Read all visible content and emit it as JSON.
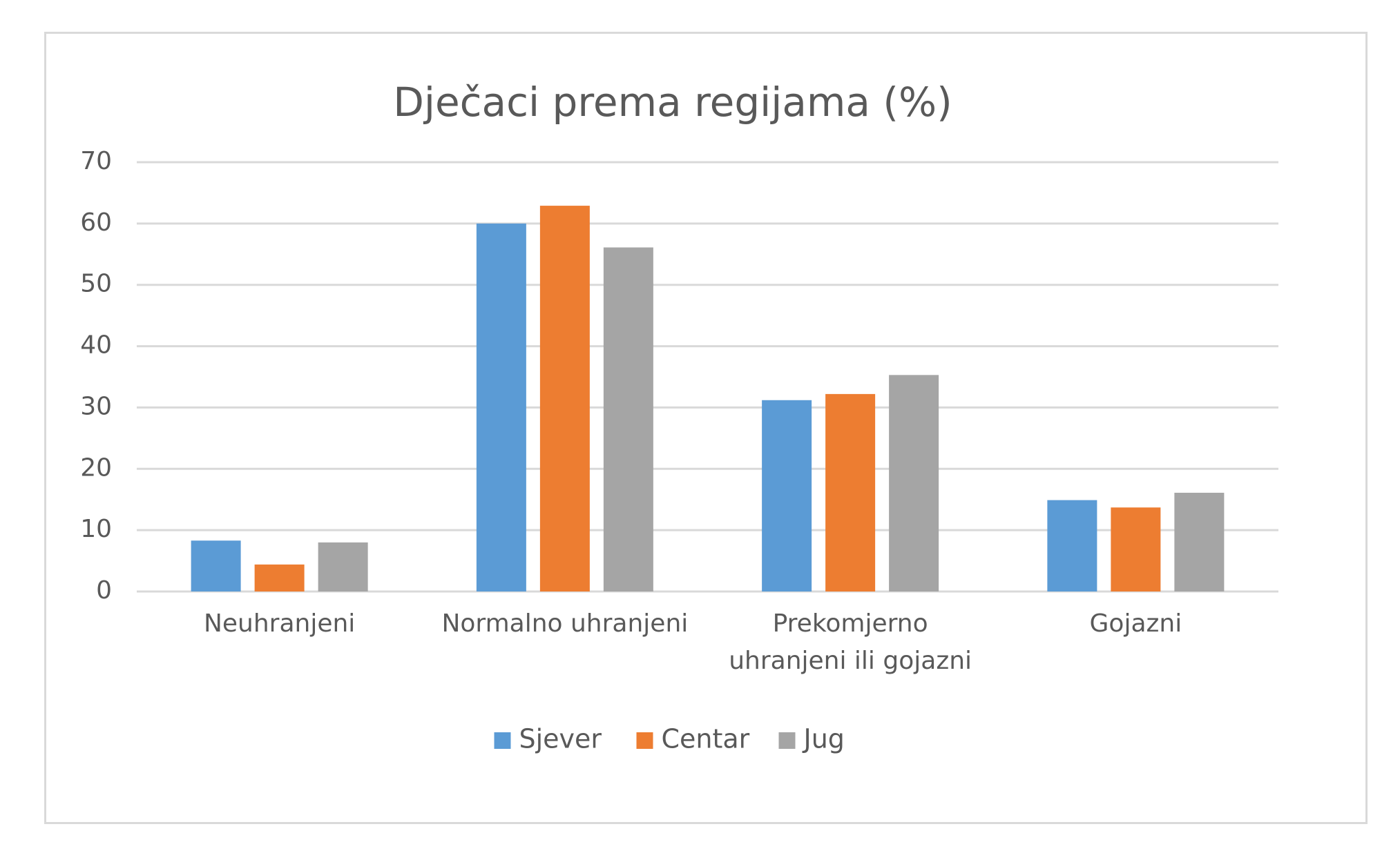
{
  "chart_data": {
    "type": "bar",
    "title": "Dječaci prema regijama (%)",
    "xlabel": "",
    "ylabel": "",
    "ylim": [
      0,
      70
    ],
    "yticks": [
      0,
      10,
      20,
      30,
      40,
      50,
      60,
      70
    ],
    "grid": true,
    "legend_position": "bottom",
    "categories": [
      [
        "Neuhranjeni"
      ],
      [
        "Normalno uhranjeni"
      ],
      [
        "Prekomjerno",
        "uhranjeni ili gojazni"
      ],
      [
        "Gojazni"
      ]
    ],
    "series": [
      {
        "name": "Sjever",
        "color": "#5b9bd5",
        "values": [
          8.3,
          60.0,
          31.2,
          14.9
        ]
      },
      {
        "name": "Centar",
        "color": "#ed7d31",
        "values": [
          4.4,
          62.9,
          32.2,
          13.7
        ]
      },
      {
        "name": "Jug",
        "color": "#a5a5a5",
        "values": [
          8.0,
          56.1,
          35.3,
          16.1
        ]
      }
    ]
  }
}
